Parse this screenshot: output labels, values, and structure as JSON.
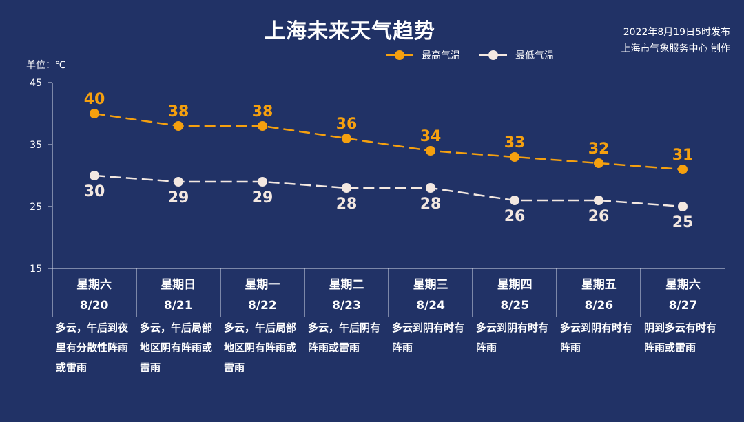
{
  "title": "上海未来天气趋势",
  "publish": {
    "line1": "2022年8月19日5时发布",
    "line2": "上海市气象服务中心 制作"
  },
  "legend": {
    "high": "最高气温",
    "low": "最低气温"
  },
  "unit": "单位：℃",
  "colors": {
    "background": "#213266",
    "high": "#f5a00f",
    "low": "#f3e8e1",
    "axis": "#d8dcea",
    "text": "#ffffff"
  },
  "chart_data": {
    "type": "line",
    "categories": [
      "8/20",
      "8/21",
      "8/22",
      "8/23",
      "8/24",
      "8/25",
      "8/26",
      "8/27"
    ],
    "series": [
      {
        "name": "最高气温",
        "values": [
          40,
          38,
          38,
          36,
          34,
          33,
          32,
          31
        ]
      },
      {
        "name": "最低气温",
        "values": [
          30,
          29,
          29,
          28,
          28,
          26,
          26,
          25
        ]
      }
    ],
    "ylabel": "单位：℃",
    "ylim": [
      15,
      45
    ],
    "yticks": [
      15,
      25,
      35,
      45
    ],
    "line_style": "dashed",
    "legend_position": "top-right",
    "grid": false
  },
  "days": [
    {
      "weekday": "星期六",
      "date": "8/20",
      "desc": "多云，午后到夜里有分散性阵雨或雷雨"
    },
    {
      "weekday": "星期日",
      "date": "8/21",
      "desc": "多云，午后局部地区阴有阵雨或雷雨"
    },
    {
      "weekday": "星期一",
      "date": "8/22",
      "desc": "多云，午后局部地区阴有阵雨或雷雨"
    },
    {
      "weekday": "星期二",
      "date": "8/23",
      "desc": "多云，午后阴有阵雨或雷雨"
    },
    {
      "weekday": "星期三",
      "date": "8/24",
      "desc": "多云到阴有时有阵雨"
    },
    {
      "weekday": "星期四",
      "date": "8/25",
      "desc": "多云到阴有时有阵雨"
    },
    {
      "weekday": "星期五",
      "date": "8/26",
      "desc": "多云到阴有时有阵雨"
    },
    {
      "weekday": "星期六",
      "date": "8/27",
      "desc": "阴到多云有时有阵雨或雷雨"
    }
  ]
}
